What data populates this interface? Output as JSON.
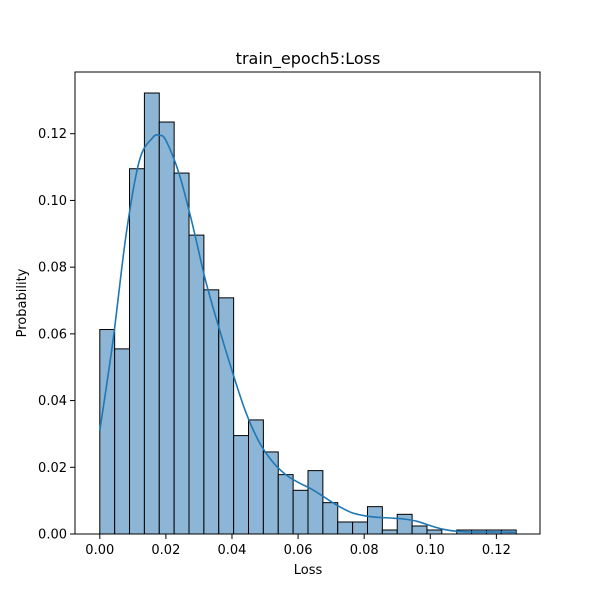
{
  "chart_data": {
    "type": "bar",
    "title": "train_epoch5:Loss",
    "xlabel": "Loss",
    "ylabel": "Probability",
    "xlim": [
      -0.0075,
      0.1332
    ],
    "ylim": [
      0,
      0.1385
    ],
    "grid": false,
    "x_ticks": [
      0.0,
      0.02,
      0.04,
      0.06,
      0.08,
      0.1,
      0.12
    ],
    "x_tick_labels": [
      "0.00",
      "0.02",
      "0.04",
      "0.06",
      "0.08",
      "0.10",
      "0.12"
    ],
    "y_ticks": [
      0.0,
      0.02,
      0.04,
      0.06,
      0.08,
      0.1,
      0.12
    ],
    "y_tick_labels": [
      "0.00",
      "0.02",
      "0.04",
      "0.06",
      "0.08",
      "0.10",
      "0.12"
    ],
    "bin_start": 0.0,
    "bin_width": 0.0045,
    "values": [
      0.0613,
      0.0555,
      0.1095,
      0.1322,
      0.1235,
      0.1082,
      0.0896,
      0.0732,
      0.0708,
      0.0295,
      0.0342,
      0.0246,
      0.0178,
      0.0131,
      0.019,
      0.0094,
      0.0036,
      0.0036,
      0.0082,
      0.0012,
      0.0059,
      0.0024,
      0.0012,
      0.0,
      0.0012,
      0.0012,
      0.0012,
      0.0012
    ],
    "kde": {
      "x": [
        0.0,
        0.004,
        0.008,
        0.012,
        0.016,
        0.018,
        0.02,
        0.024,
        0.028,
        0.032,
        0.036,
        0.04,
        0.044,
        0.048,
        0.052,
        0.056,
        0.06,
        0.064,
        0.068,
        0.072,
        0.076,
        0.08,
        0.084,
        0.088,
        0.092,
        0.096,
        0.1,
        0.104,
        0.108,
        0.112,
        0.116,
        0.12,
        0.126
      ],
      "y": [
        0.031,
        0.058,
        0.09,
        0.112,
        0.1188,
        0.1195,
        0.118,
        0.108,
        0.093,
        0.076,
        0.062,
        0.049,
        0.037,
        0.028,
        0.022,
        0.018,
        0.0155,
        0.0135,
        0.011,
        0.0085,
        0.0065,
        0.0055,
        0.005,
        0.0048,
        0.0045,
        0.0038,
        0.0025,
        0.0014,
        0.0008,
        0.0006,
        0.0006,
        0.0006,
        0.0005
      ]
    },
    "colors": {
      "bar_fill": "#8DB6D6",
      "bar_edge": "#000000",
      "kde_line": "#1f77b4"
    }
  }
}
